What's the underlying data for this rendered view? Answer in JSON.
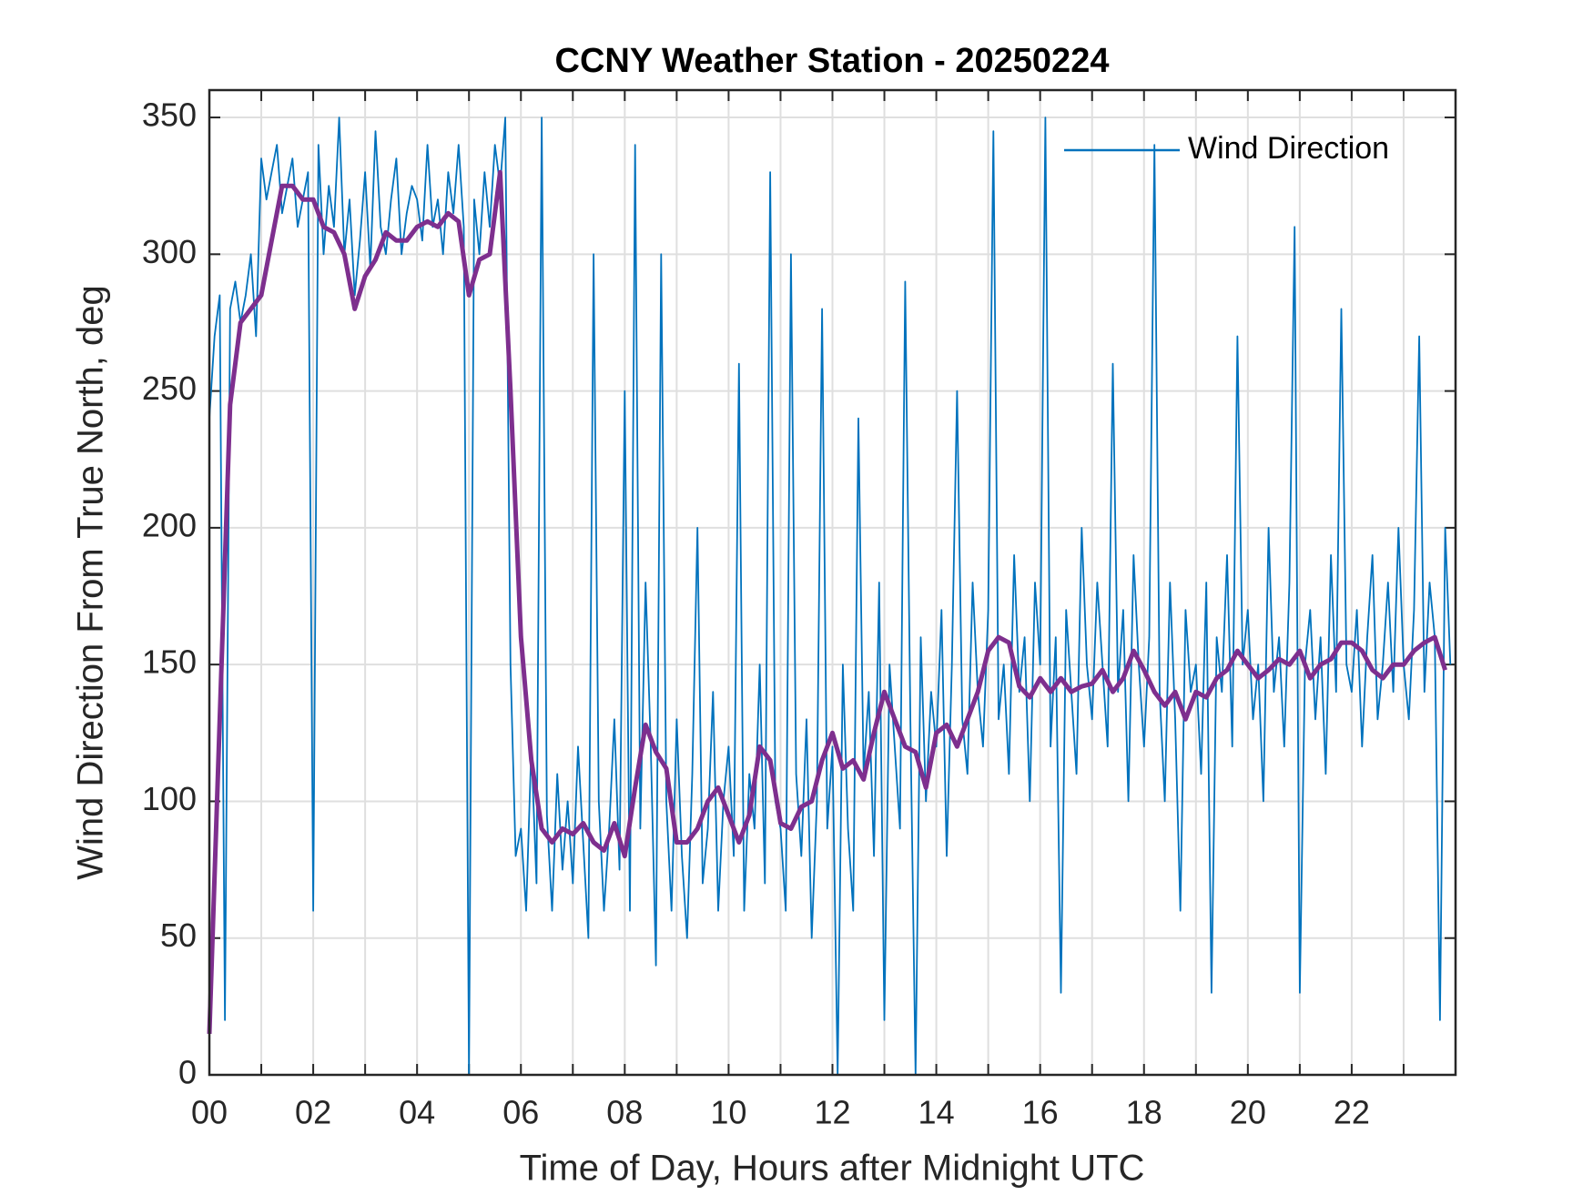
{
  "chart_data": {
    "type": "line",
    "title": "CCNY Weather Station - 20250224",
    "xlabel": "Time of Day, Hours after Midnight UTC",
    "ylabel": "Wind Direction From True North, deg",
    "xlim": [
      0,
      24
    ],
    "ylim": [
      0,
      360
    ],
    "xticks": [
      {
        "value": 0,
        "label": "00"
      },
      {
        "value": 2,
        "label": "02"
      },
      {
        "value": 4,
        "label": "04"
      },
      {
        "value": 6,
        "label": "06"
      },
      {
        "value": 8,
        "label": "08"
      },
      10,
      12,
      14,
      16,
      18,
      20,
      22
    ],
    "xminorticks": [
      1,
      3,
      5,
      7,
      9,
      11,
      13,
      15,
      17,
      19,
      21,
      23
    ],
    "yticks": [
      0,
      50,
      100,
      150,
      200,
      250,
      300,
      350
    ],
    "grid": true,
    "legend": "northeast",
    "series": [
      {
        "name": "Wind Direction",
        "color": "#0072bd",
        "x": [
          0,
          0.1,
          0.2,
          0.3,
          0.4,
          0.5,
          0.6,
          0.7,
          0.8,
          0.9,
          1,
          1.1,
          1.2,
          1.3,
          1.4,
          1.5,
          1.6,
          1.7,
          1.8,
          1.9,
          2,
          2.1,
          2.2,
          2.3,
          2.4,
          2.5,
          2.6,
          2.7,
          2.8,
          2.9,
          3,
          3.1,
          3.2,
          3.3,
          3.4,
          3.5,
          3.6,
          3.7,
          3.8,
          3.9,
          4,
          4.1,
          4.2,
          4.3,
          4.4,
          4.5,
          4.6,
          4.7,
          4.8,
          4.9,
          5,
          5.1,
          5.2,
          5.3,
          5.4,
          5.5,
          5.6,
          5.7,
          5.8,
          5.9,
          6,
          6.1,
          6.2,
          6.3,
          6.4,
          6.5,
          6.6,
          6.7,
          6.8,
          6.9,
          7,
          7.1,
          7.2,
          7.3,
          7.4,
          7.5,
          7.6,
          7.7,
          7.8,
          7.9,
          8,
          8.1,
          8.2,
          8.3,
          8.4,
          8.5,
          8.6,
          8.7,
          8.8,
          8.9,
          9,
          9.1,
          9.2,
          9.3,
          9.4,
          9.5,
          9.6,
          9.7,
          9.8,
          9.9,
          10,
          10.1,
          10.2,
          10.3,
          10.4,
          10.5,
          10.6,
          10.7,
          10.8,
          10.9,
          11,
          11.1,
          11.2,
          11.3,
          11.4,
          11.5,
          11.6,
          11.7,
          11.8,
          11.9,
          12,
          12.1,
          12.2,
          12.3,
          12.4,
          12.5,
          12.6,
          12.7,
          12.8,
          12.9,
          13,
          13.1,
          13.2,
          13.3,
          13.4,
          13.5,
          13.6,
          13.7,
          13.8,
          13.9,
          14,
          14.1,
          14.2,
          14.3,
          14.4,
          14.5,
          14.6,
          14.7,
          14.8,
          14.9,
          15,
          15.1,
          15.2,
          15.3,
          15.4,
          15.5,
          15.6,
          15.7,
          15.8,
          15.9,
          16,
          16.1,
          16.2,
          16.3,
          16.4,
          16.5,
          16.6,
          16.7,
          16.8,
          16.9,
          17,
          17.1,
          17.2,
          17.3,
          17.4,
          17.5,
          17.6,
          17.7,
          17.8,
          17.9,
          18,
          18.1,
          18.2,
          18.3,
          18.4,
          18.5,
          18.6,
          18.7,
          18.8,
          18.9,
          19,
          19.1,
          19.2,
          19.3,
          19.4,
          19.5,
          19.6,
          19.7,
          19.8,
          19.9,
          20,
          20.1,
          20.2,
          20.3,
          20.4,
          20.5,
          20.6,
          20.7,
          20.8,
          20.9,
          21,
          21.1,
          21.2,
          21.3,
          21.4,
          21.5,
          21.6,
          21.7,
          21.8,
          21.9,
          22,
          22.1,
          22.2,
          22.3,
          22.4,
          22.5,
          22.6,
          22.7,
          22.8,
          22.9,
          23,
          23.1,
          23.2,
          23.3,
          23.4,
          23.5,
          23.6,
          23.7,
          23.8,
          23.9
        ],
        "values": [
          240,
          270,
          285,
          20,
          280,
          290,
          275,
          285,
          300,
          270,
          335,
          320,
          330,
          340,
          315,
          325,
          335,
          310,
          320,
          330,
          60,
          340,
          300,
          325,
          310,
          350,
          300,
          320,
          285,
          305,
          330,
          295,
          345,
          310,
          300,
          320,
          335,
          300,
          315,
          325,
          320,
          305,
          340,
          310,
          320,
          300,
          330,
          315,
          340,
          310,
          0,
          320,
          300,
          330,
          310,
          340,
          325,
          350,
          150,
          80,
          90,
          60,
          120,
          70,
          350,
          95,
          60,
          110,
          75,
          100,
          70,
          120,
          85,
          50,
          300,
          100,
          60,
          90,
          130,
          75,
          250,
          60,
          340,
          90,
          180,
          120,
          40,
          300,
          100,
          60,
          130,
          80,
          50,
          110,
          200,
          70,
          90,
          140,
          60,
          100,
          120,
          80,
          260,
          60,
          110,
          90,
          150,
          70,
          330,
          100,
          90,
          60,
          300,
          110,
          80,
          130,
          50,
          100,
          280,
          90,
          120,
          0,
          150,
          90,
          60,
          240,
          110,
          140,
          80,
          180,
          20,
          150,
          120,
          90,
          290,
          130,
          0,
          160,
          100,
          140,
          120,
          170,
          80,
          150,
          250,
          130,
          110,
          180,
          140,
          120,
          170,
          345,
          130,
          150,
          110,
          190,
          140,
          160,
          100,
          180,
          150,
          350,
          120,
          160,
          30,
          170,
          140,
          110,
          200,
          150,
          130,
          180,
          150,
          120,
          260,
          140,
          170,
          100,
          190,
          150,
          120,
          160,
          340,
          140,
          100,
          180,
          130,
          60,
          170,
          140,
          150,
          110,
          180,
          30,
          160,
          140,
          190,
          120,
          270,
          150,
          170,
          130,
          150,
          100,
          200,
          140,
          160,
          120,
          180,
          310,
          30,
          150,
          170,
          130,
          160,
          110,
          190,
          140,
          280,
          150,
          140,
          170,
          120,
          160,
          190,
          130,
          150,
          180,
          140,
          200,
          150,
          130,
          170,
          270,
          140,
          180,
          160,
          20,
          200,
          150
        ]
      },
      {
        "color": "#7e2f8e",
        "x": [
          0,
          0.2,
          0.4,
          0.6,
          0.8,
          1,
          1.2,
          1.4,
          1.6,
          1.8,
          2,
          2.2,
          2.4,
          2.6,
          2.8,
          3,
          3.2,
          3.4,
          3.6,
          3.8,
          4,
          4.2,
          4.4,
          4.6,
          4.8,
          5,
          5.2,
          5.4,
          5.6,
          5.8,
          6,
          6.2,
          6.4,
          6.6,
          6.8,
          7,
          7.2,
          7.4,
          7.6,
          7.8,
          8,
          8.2,
          8.4,
          8.6,
          8.8,
          9,
          9.2,
          9.4,
          9.6,
          9.8,
          10,
          10.2,
          10.4,
          10.6,
          10.8,
          11,
          11.2,
          11.4,
          11.6,
          11.8,
          12,
          12.2,
          12.4,
          12.6,
          12.8,
          13,
          13.2,
          13.4,
          13.6,
          13.8,
          14,
          14.2,
          14.4,
          14.6,
          14.8,
          15,
          15.2,
          15.4,
          15.6,
          15.8,
          16,
          16.2,
          16.4,
          16.6,
          16.8,
          17,
          17.2,
          17.4,
          17.6,
          17.8,
          18,
          18.2,
          18.4,
          18.6,
          18.8,
          19,
          19.2,
          19.4,
          19.6,
          19.8,
          20,
          20.2,
          20.4,
          20.6,
          20.8,
          21,
          21.2,
          21.4,
          21.6,
          21.8,
          22,
          22.2,
          22.4,
          22.6,
          22.8,
          23,
          23.2,
          23.4,
          23.6,
          23.8
        ],
        "values": [
          15,
          130,
          245,
          275,
          280,
          285,
          305,
          325,
          325,
          320,
          320,
          310,
          308,
          300,
          280,
          292,
          298,
          308,
          305,
          305,
          310,
          312,
          310,
          315,
          312,
          285,
          298,
          300,
          330,
          250,
          160,
          115,
          90,
          85,
          90,
          88,
          92,
          85,
          82,
          92,
          80,
          105,
          128,
          118,
          112,
          85,
          85,
          90,
          100,
          105,
          95,
          85,
          95,
          120,
          115,
          92,
          90,
          98,
          100,
          115,
          125,
          112,
          115,
          108,
          125,
          140,
          130,
          120,
          118,
          105,
          125,
          128,
          120,
          130,
          140,
          155,
          160,
          158,
          142,
          138,
          145,
          140,
          145,
          140,
          142,
          143,
          148,
          140,
          145,
          155,
          148,
          140,
          135,
          140,
          130,
          140,
          138,
          145,
          148,
          155,
          150,
          145,
          148,
          152,
          150,
          155,
          145,
          150,
          152,
          158,
          158,
          155,
          148,
          145,
          150,
          150,
          155,
          158,
          160,
          148
        ]
      }
    ]
  }
}
